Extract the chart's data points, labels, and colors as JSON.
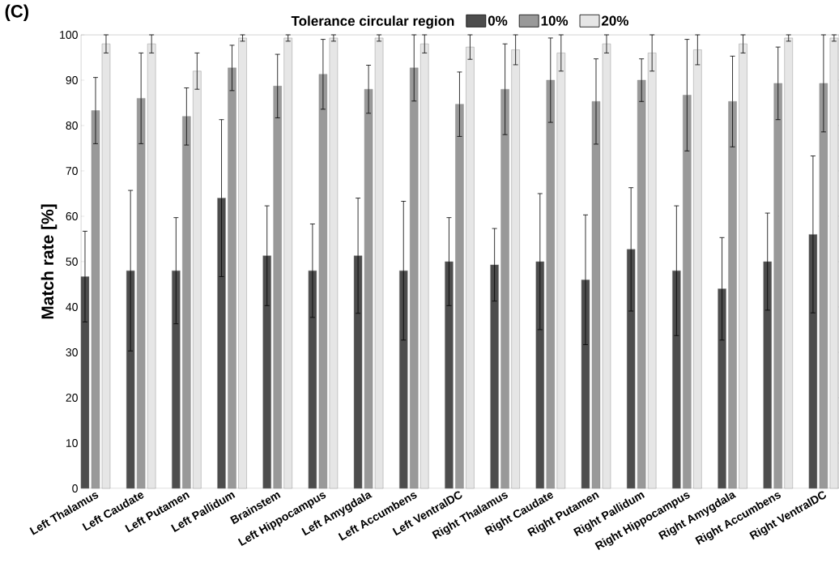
{
  "chart_data": {
    "type": "bar",
    "ylabel": "Match rate [%]",
    "legend_title": "Tolerance circular region",
    "annotations": [
      "(C)"
    ],
    "categories": [
      "Left Thalamus",
      "Left Caudate",
      "Left Putamen",
      "Left Pallidum",
      "Brainstem",
      "Left Hippocampus",
      "Left Amygdala",
      "Left Accumbens",
      "Left VentralDC",
      "Right Thalamus",
      "Right Caudate",
      "Right Putamen",
      "Right Pallidum",
      "Right Hippocampus",
      "Right Amygdala",
      "Right Accumbens",
      "Right VentralDC"
    ],
    "series": [
      {
        "name": "0%",
        "color": "#4d4d4d",
        "values": [
          46.7,
          48,
          48,
          64,
          51.3,
          48,
          51.3,
          48,
          50,
          49.3,
          50,
          46,
          52.7,
          48,
          44,
          50,
          56
        ],
        "errors": [
          10,
          17.7,
          11.7,
          17.3,
          11,
          10.3,
          12.7,
          15.3,
          9.7,
          8,
          15,
          14.3,
          13.6,
          14.3,
          11.3,
          10.7,
          17.3
        ]
      },
      {
        "name": "10%",
        "color": "#999999",
        "values": [
          83.3,
          86,
          82,
          92.7,
          88.7,
          91.3,
          88,
          92.7,
          84.7,
          88,
          90,
          85.3,
          90,
          86.7,
          85.3,
          89.3,
          89.3
        ],
        "errors": [
          7.3,
          10,
          6.3,
          5,
          7,
          7.7,
          5.3,
          7.3,
          7.1,
          10,
          9.3,
          9.4,
          4.7,
          12.3,
          10,
          8,
          10.7
        ]
      },
      {
        "name": "20%",
        "color": "#e6e6e6",
        "values": [
          98,
          98,
          92,
          99.3,
          99.3,
          99.3,
          99.3,
          98,
          97.3,
          96.7,
          96,
          98,
          96,
          96.7,
          98,
          99.3,
          99.3
        ],
        "errors": [
          2,
          2,
          4,
          0.7,
          0.7,
          0.7,
          0.7,
          2,
          2.7,
          3.3,
          4,
          2,
          4,
          3.3,
          2,
          0.7,
          0.7
        ]
      }
    ],
    "ylim": [
      0,
      100
    ],
    "yticks": [
      0,
      10,
      20,
      30,
      40,
      50,
      60,
      70,
      80,
      90,
      100
    ],
    "legend": "top",
    "grid": false
  }
}
